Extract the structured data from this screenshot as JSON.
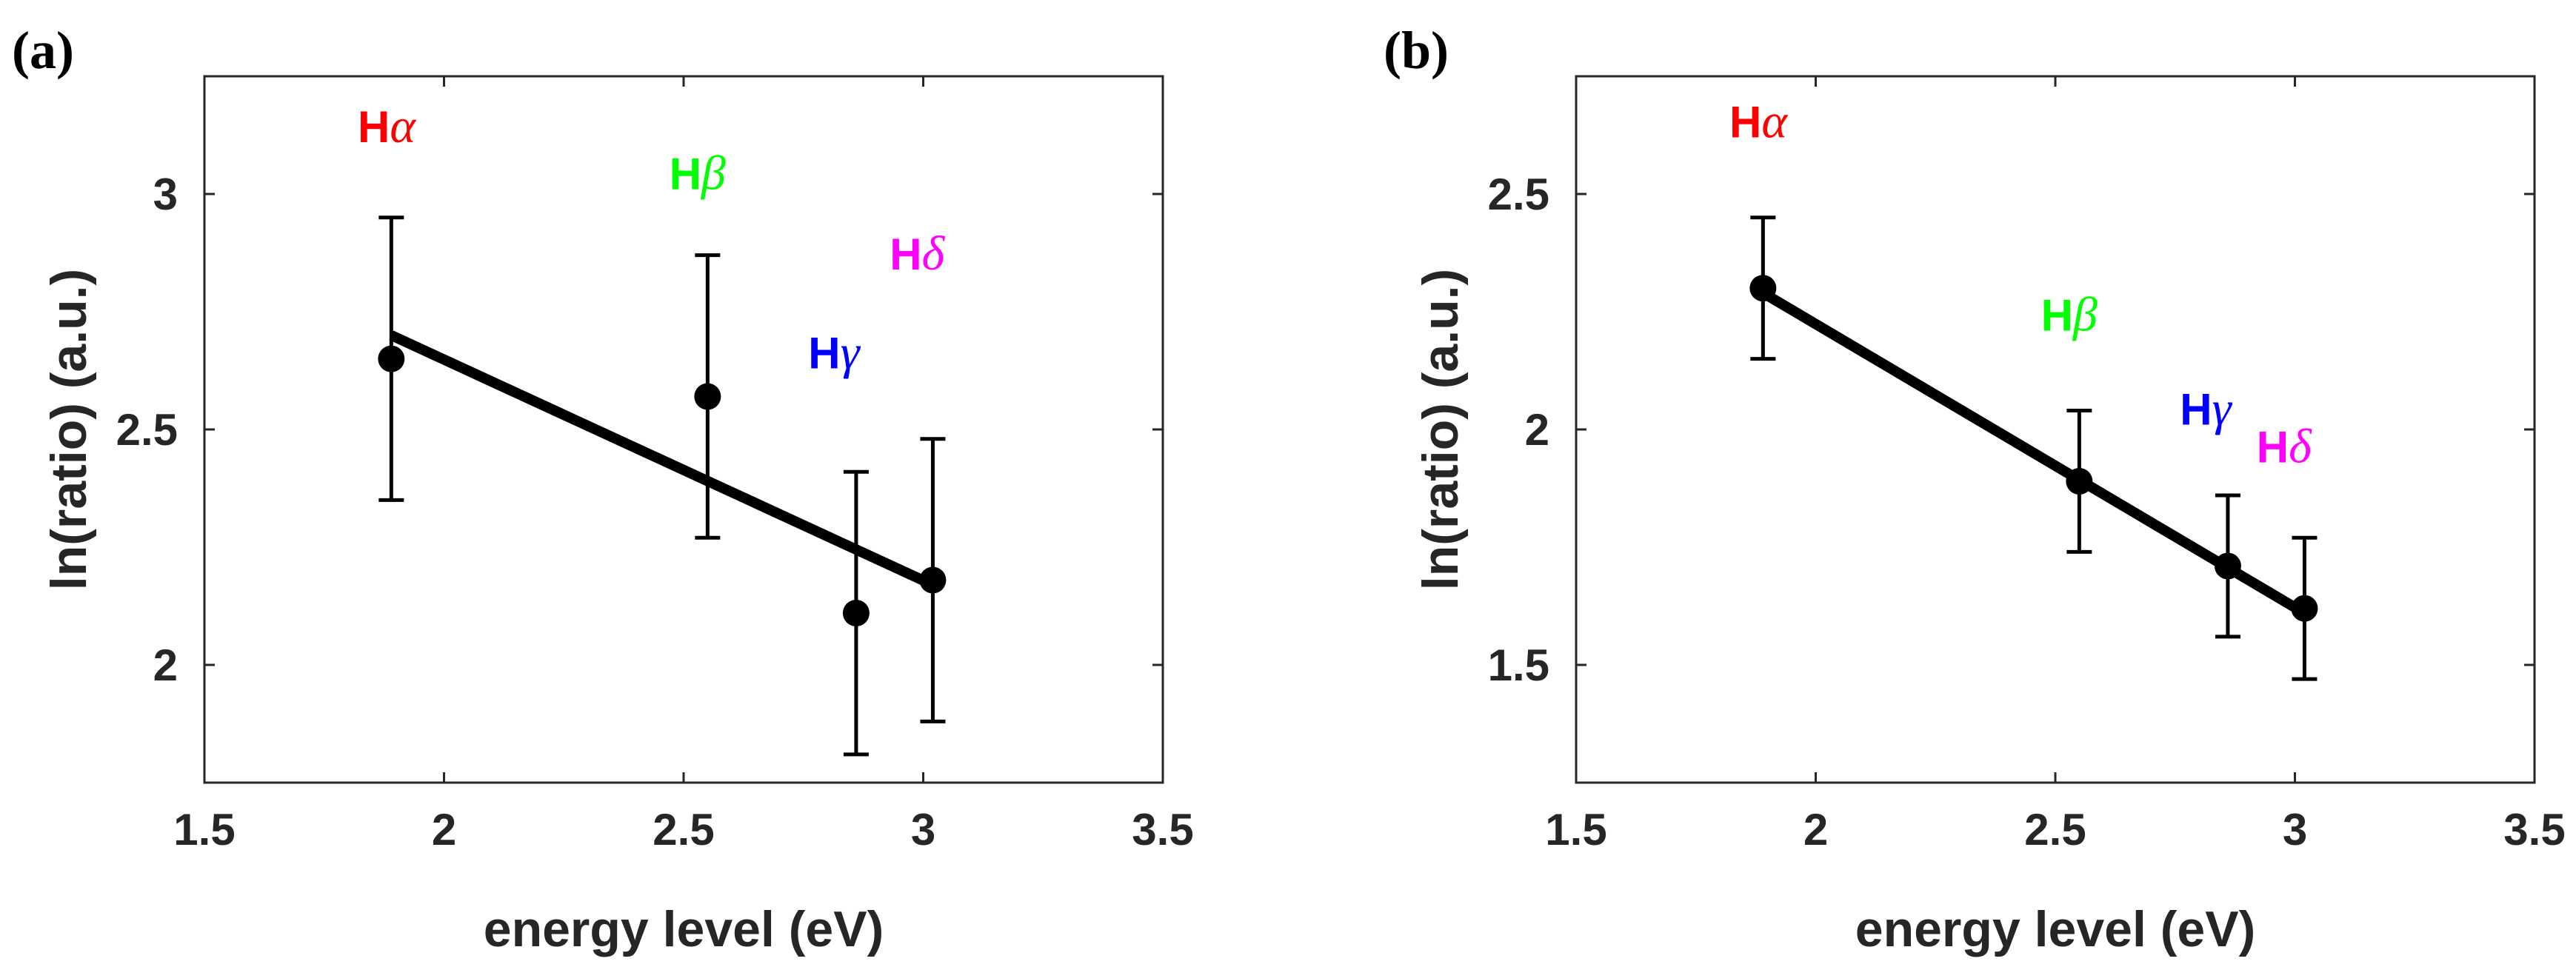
{
  "chart_data": [
    {
      "type": "scatter",
      "panel_label": "(a)",
      "xlabel": "energy level (eV)",
      "ylabel": "ln(ratio) (a.u.)",
      "xlim": [
        1.5,
        3.5
      ],
      "ylim": [
        1.75,
        3.25
      ],
      "xticks": [
        1.5,
        2,
        2.5,
        3,
        3.5
      ],
      "xtick_labels": [
        "1.5",
        "2",
        "2.5",
        "3",
        "3.5"
      ],
      "yticks": [
        2,
        2.5,
        3
      ],
      "ytick_labels": [
        "2",
        "2.5",
        "3"
      ],
      "points": [
        {
          "name": "Hα",
          "x": 1.89,
          "y": 2.65,
          "err": 0.3
        },
        {
          "name": "Hβ",
          "x": 2.55,
          "y": 2.57,
          "err": 0.3
        },
        {
          "name": "Hγ",
          "x": 2.86,
          "y": 2.11,
          "err": 0.3
        },
        {
          "name": "Hδ",
          "x": 3.02,
          "y": 2.18,
          "err": 0.3
        }
      ],
      "fit_line": {
        "x": [
          1.89,
          3.02
        ],
        "y": [
          2.7,
          2.17
        ]
      },
      "annotations": [
        {
          "prefix": "H",
          "greek": "α",
          "color": "#ff0000",
          "x": 1.82,
          "y": 3.11
        },
        {
          "prefix": "H",
          "greek": "β",
          "color": "#00ff00",
          "x": 2.47,
          "y": 3.01
        },
        {
          "prefix": "H",
          "greek": "γ",
          "color": "#0000ff",
          "x": 2.76,
          "y": 2.63
        },
        {
          "prefix": "H",
          "greek": "δ",
          "color": "#ff00ff",
          "x": 2.93,
          "y": 2.84
        }
      ]
    },
    {
      "type": "scatter",
      "panel_label": "(b)",
      "xlabel": "energy level (eV)",
      "ylabel": "ln(ratio) (a.u.)",
      "xlim": [
        1.5,
        3.5
      ],
      "ylim": [
        1.25,
        2.75
      ],
      "xticks": [
        1.5,
        2,
        2.5,
        3,
        3.5
      ],
      "xtick_labels": [
        "1.5",
        "2",
        "2.5",
        "3",
        "3.5"
      ],
      "yticks": [
        1.5,
        2,
        2.5
      ],
      "ytick_labels": [
        "1.5",
        "2",
        "2.5"
      ],
      "points": [
        {
          "name": "Hα",
          "x": 1.89,
          "y": 2.3,
          "err": 0.15
        },
        {
          "name": "Hβ",
          "x": 2.55,
          "y": 1.89,
          "err": 0.15
        },
        {
          "name": "Hγ",
          "x": 2.86,
          "y": 1.71,
          "err": 0.15
        },
        {
          "name": "Hδ",
          "x": 3.02,
          "y": 1.62,
          "err": 0.15
        }
      ],
      "fit_line": {
        "x": [
          1.89,
          3.02
        ],
        "y": [
          2.29,
          1.61
        ]
      },
      "annotations": [
        {
          "prefix": "H",
          "greek": "α",
          "color": "#ff0000",
          "x": 1.82,
          "y": 2.62
        },
        {
          "prefix": "H",
          "greek": "β",
          "color": "#00ff00",
          "x": 2.47,
          "y": 2.21
        },
        {
          "prefix": "H",
          "greek": "γ",
          "color": "#0000ff",
          "x": 2.76,
          "y": 2.01
        },
        {
          "prefix": "H",
          "greek": "δ",
          "color": "#ff00ff",
          "x": 2.92,
          "y": 1.93
        }
      ]
    }
  ]
}
